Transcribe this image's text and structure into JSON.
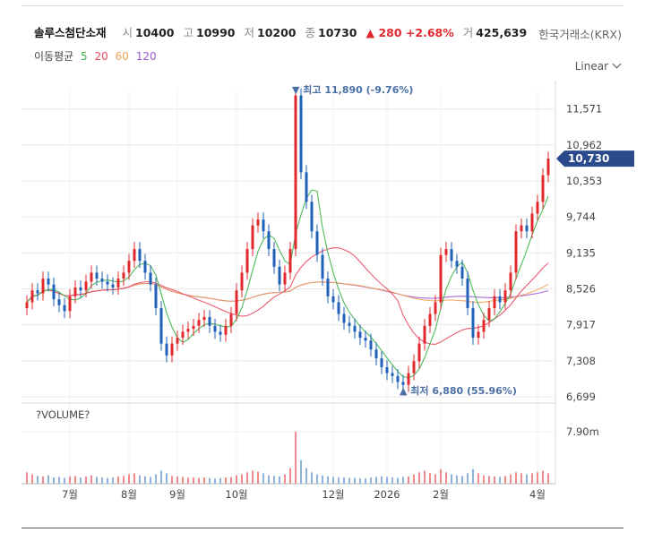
{
  "header": {
    "name": "솔루스첨단소재",
    "open_label": "시",
    "open": "10400",
    "high_label": "고",
    "high": "10990",
    "low_label": "저",
    "low": "10200",
    "close_label": "종",
    "close": "10730",
    "change": "▲ 280 +2.68%",
    "volume_label": "거",
    "volume": "425,639",
    "exchange": "한국거래소(KRX)"
  },
  "ma_legend": {
    "label": "이동평균",
    "items": [
      {
        "period": "5",
        "color": "#3cb44b"
      },
      {
        "period": "20",
        "color": "#e84a5f"
      },
      {
        "period": "60",
        "color": "#f4a259"
      },
      {
        "period": "120",
        "color": "#9b59d0"
      }
    ]
  },
  "scale_mode": "Linear",
  "colors": {
    "up": "#e0282e",
    "down": "#1f62b8",
    "current": "#2b4a8b",
    "annotation": "#4a6fa5",
    "grid": "#e8e8e8"
  },
  "chart_data": {
    "type": "candlestick",
    "ylim": [
      6699,
      11900
    ],
    "y_ticks": [
      "11,571",
      "10,962",
      "10,353",
      "9,744",
      "9,135",
      "8,526",
      "7,917",
      "7,308",
      "6,699"
    ],
    "y_tick_values": [
      11571,
      10962,
      10353,
      9744,
      9135,
      8526,
      7917,
      7308,
      6699
    ],
    "x_ticks": [
      "7월",
      "8월",
      "9월",
      "10월",
      "12월",
      "2026",
      "2월",
      "4월"
    ],
    "x_tick_index": [
      8,
      19,
      28,
      39,
      57,
      67,
      77,
      95
    ],
    "current_price": "10,730",
    "high_annotation": "▼ 최고 11,890 (-9.76%)",
    "low_annotation": "▲ 최저 6,880 (55.96%)",
    "close": [
      8300,
      8500,
      8450,
      8700,
      8600,
      8350,
      8250,
      8150,
      8400,
      8550,
      8500,
      8650,
      8800,
      8700,
      8650,
      8600,
      8550,
      8700,
      8800,
      9000,
      9200,
      9000,
      8800,
      8600,
      8200,
      7600,
      7400,
      7600,
      7700,
      7800,
      7850,
      7900,
      8000,
      8050,
      7900,
      7800,
      7750,
      7900,
      8100,
      8500,
      8800,
      9200,
      9600,
      9700,
      9500,
      9200,
      8900,
      8600,
      8800,
      9200,
      11800,
      10500,
      10000,
      9500,
      9100,
      8700,
      8400,
      8300,
      8100,
      7950,
      7900,
      7800,
      7700,
      7650,
      7500,
      7350,
      7200,
      7100,
      7050,
      6950,
      6900,
      7100,
      7300,
      7600,
      7900,
      8100,
      8300,
      9100,
      9200,
      9000,
      8900,
      8700,
      8200,
      7700,
      7800,
      8000,
      8200,
      8400,
      8300,
      8500,
      8800,
      9500,
      9600,
      9500,
      9800,
      10000,
      10450,
      10730
    ],
    "volume": [
      0.22,
      0.18,
      0.15,
      0.14,
      0.16,
      0.12,
      0.13,
      0.11,
      0.14,
      0.15,
      0.12,
      0.14,
      0.16,
      0.13,
      0.12,
      0.11,
      0.12,
      0.14,
      0.15,
      0.18,
      0.2,
      0.16,
      0.14,
      0.13,
      0.18,
      0.25,
      0.2,
      0.15,
      0.14,
      0.13,
      0.12,
      0.12,
      0.11,
      0.12,
      0.11,
      0.1,
      0.11,
      0.12,
      0.13,
      0.16,
      0.18,
      0.22,
      0.25,
      0.23,
      0.2,
      0.16,
      0.15,
      0.14,
      0.18,
      0.3,
      1.0,
      0.45,
      0.3,
      0.22,
      0.18,
      0.16,
      0.14,
      0.13,
      0.12,
      0.12,
      0.11,
      0.11,
      0.1,
      0.1,
      0.12,
      0.13,
      0.14,
      0.13,
      0.12,
      0.11,
      0.13,
      0.14,
      0.18,
      0.22,
      0.25,
      0.2,
      0.18,
      0.28,
      0.22,
      0.18,
      0.16,
      0.15,
      0.2,
      0.28,
      0.2,
      0.16,
      0.15,
      0.14,
      0.13,
      0.15,
      0.18,
      0.22,
      0.2,
      0.18,
      0.2,
      0.22,
      0.25,
      0.2
    ],
    "volume_label": "?VOLUME?",
    "volume_tick": "7.90m"
  }
}
